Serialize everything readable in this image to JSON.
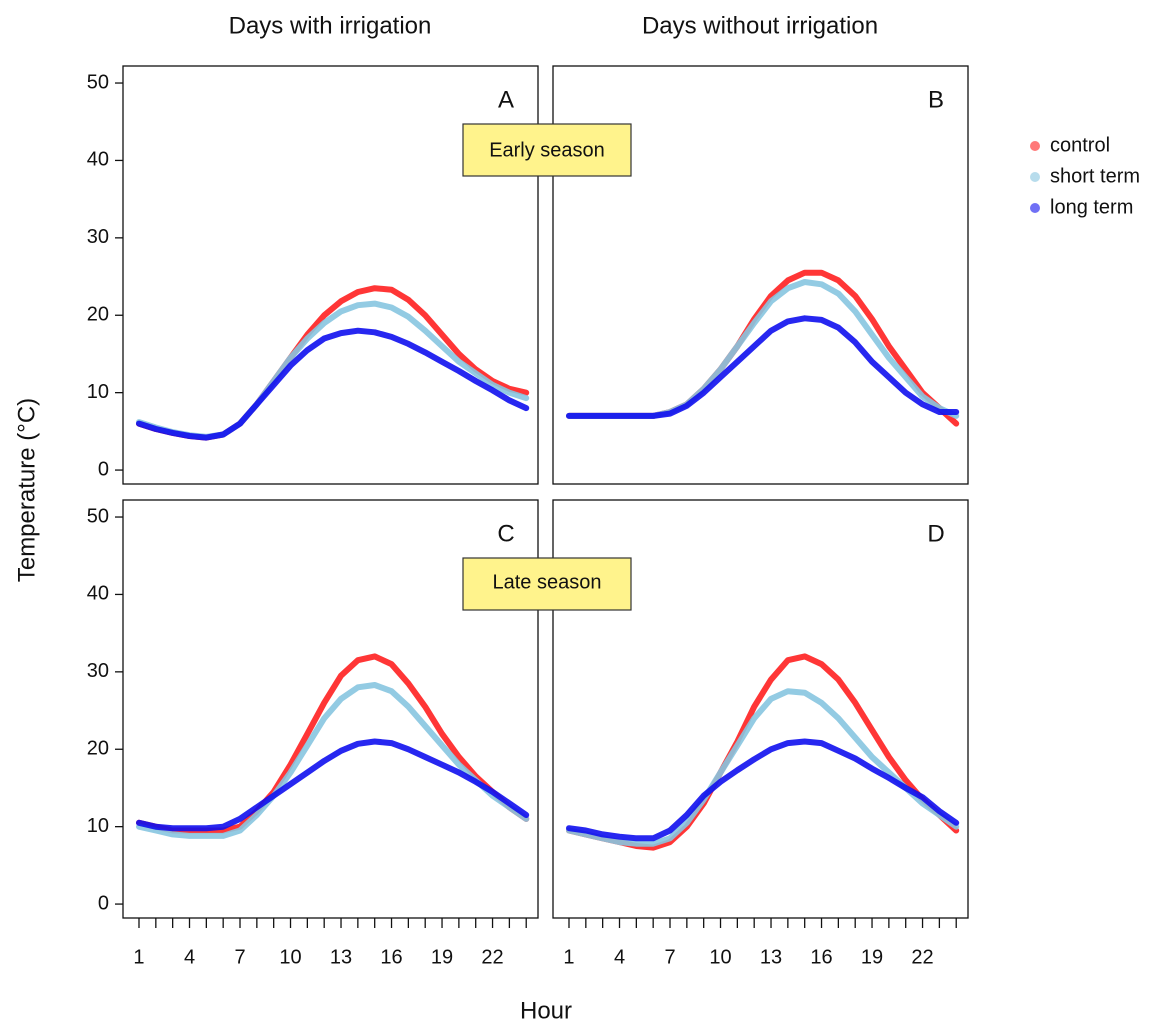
{
  "figure": {
    "column_titles": [
      "Days with irrigation",
      "Days without irrigation"
    ],
    "season_labels": [
      "Early season",
      "Late season"
    ],
    "y_label": "Temperature (°C)",
    "x_label": "Hour"
  },
  "chart_data": [
    {
      "type": "line",
      "title": "A",
      "xlim": [
        0.05,
        24.7
      ],
      "ylim": [
        -1.8,
        52.2
      ],
      "yticks": [
        0,
        10,
        20,
        30,
        40,
        50
      ],
      "x": [
        1,
        2,
        3,
        4,
        5,
        6,
        7,
        8,
        9,
        10,
        11,
        12,
        13,
        14,
        15,
        16,
        17,
        18,
        19,
        20,
        21,
        22,
        23,
        24
      ],
      "series": [
        {
          "name": "control",
          "color": "#ff2020",
          "values": [
            6,
            5.3,
            4.8,
            4.4,
            4.2,
            4.6,
            6,
            8.5,
            11.5,
            14.5,
            17.5,
            20,
            21.8,
            23,
            23.5,
            23.3,
            22,
            20,
            17.5,
            15,
            13,
            11.5,
            10.5,
            10
          ]
        },
        {
          "name": "short term",
          "color": "#87c5e0",
          "values": [
            6.2,
            5.5,
            4.9,
            4.5,
            4.3,
            4.6,
            6,
            8.5,
            11.5,
            14.5,
            17,
            19,
            20.5,
            21.3,
            21.5,
            21,
            19.8,
            18,
            16,
            14,
            12.5,
            11,
            10,
            9.3
          ]
        },
        {
          "name": "long term",
          "color": "#1010ee",
          "values": [
            6,
            5.3,
            4.8,
            4.4,
            4.2,
            4.6,
            6,
            8.5,
            11,
            13.5,
            15.5,
            17,
            17.7,
            18,
            17.8,
            17.2,
            16.3,
            15.2,
            14,
            12.8,
            11.5,
            10.3,
            9,
            8
          ]
        }
      ]
    },
    {
      "type": "line",
      "title": "B",
      "xlim": [
        0.05,
        24.7
      ],
      "ylim": [
        -1.8,
        52.2
      ],
      "x": [
        1,
        2,
        3,
        4,
        5,
        6,
        7,
        8,
        9,
        10,
        11,
        12,
        13,
        14,
        15,
        16,
        17,
        18,
        19,
        20,
        21,
        22,
        23,
        24
      ],
      "series": [
        {
          "name": "control",
          "color": "#ff2020",
          "values": [
            7,
            7,
            7,
            7,
            7,
            7,
            7.5,
            8.5,
            10.5,
            13,
            16,
            19.5,
            22.5,
            24.5,
            25.5,
            25.5,
            24.5,
            22.5,
            19.5,
            16,
            13,
            10,
            8,
            6
          ]
        },
        {
          "name": "short term",
          "color": "#87c5e0",
          "values": [
            7,
            7,
            7,
            7,
            7,
            7,
            7.5,
            8.5,
            10.5,
            13,
            16,
            19,
            21.8,
            23.5,
            24.3,
            24,
            22.8,
            20.5,
            17.5,
            14.5,
            12,
            9.5,
            8,
            7
          ]
        },
        {
          "name": "long term",
          "color": "#1010ee",
          "values": [
            7,
            7,
            7,
            7,
            7,
            7,
            7.3,
            8.3,
            10,
            12,
            14,
            16,
            18,
            19.2,
            19.6,
            19.4,
            18.4,
            16.5,
            14,
            12,
            10,
            8.5,
            7.5,
            7.5
          ]
        }
      ]
    },
    {
      "type": "line",
      "title": "C",
      "xlim": [
        0.05,
        24.7
      ],
      "ylim": [
        -1.8,
        52.2
      ],
      "yticks": [
        0,
        10,
        20,
        30,
        40,
        50
      ],
      "xticks": [
        1,
        4,
        7,
        10,
        13,
        16,
        19,
        22
      ],
      "xticks_minor": [
        2,
        3,
        5,
        6,
        8,
        9,
        11,
        12,
        14,
        15,
        17,
        18,
        20,
        21,
        23,
        24
      ],
      "x": [
        1,
        2,
        3,
        4,
        5,
        6,
        7,
        8,
        9,
        10,
        11,
        12,
        13,
        14,
        15,
        16,
        17,
        18,
        19,
        20,
        21,
        22,
        23,
        24
      ],
      "series": [
        {
          "name": "control",
          "color": "#ff2020",
          "values": [
            10.5,
            10,
            9.5,
            9.5,
            9.5,
            9.5,
            10,
            12,
            14.5,
            18,
            22,
            26,
            29.5,
            31.5,
            32,
            31,
            28.5,
            25.5,
            22,
            19,
            16.5,
            14.5,
            12.5,
            11
          ]
        },
        {
          "name": "short term",
          "color": "#87c5e0",
          "values": [
            10,
            9.5,
            9,
            8.8,
            8.8,
            8.8,
            9.5,
            11.5,
            14,
            17,
            20.5,
            24,
            26.5,
            28,
            28.3,
            27.5,
            25.5,
            23,
            20.5,
            18,
            16,
            14,
            12.5,
            11
          ]
        },
        {
          "name": "long term",
          "color": "#1010ee",
          "values": [
            10.5,
            10,
            9.8,
            9.8,
            9.8,
            10,
            11,
            12.5,
            14,
            15.5,
            17,
            18.5,
            19.8,
            20.7,
            21,
            20.8,
            20,
            19,
            18,
            17,
            15.8,
            14.5,
            13,
            11.5
          ]
        }
      ]
    },
    {
      "type": "line",
      "title": "D",
      "xlim": [
        0.05,
        24.7
      ],
      "ylim": [
        -1.8,
        52.2
      ],
      "xticks": [
        1,
        4,
        7,
        10,
        13,
        16,
        19,
        22
      ],
      "xticks_minor": [
        2,
        3,
        5,
        6,
        8,
        9,
        11,
        12,
        14,
        15,
        17,
        18,
        20,
        21,
        23,
        24
      ],
      "x": [
        1,
        2,
        3,
        4,
        5,
        6,
        7,
        8,
        9,
        10,
        11,
        12,
        13,
        14,
        15,
        16,
        17,
        18,
        19,
        20,
        21,
        22,
        23,
        24
      ],
      "series": [
        {
          "name": "control",
          "color": "#ff2020",
          "values": [
            9.5,
            9,
            8.5,
            8,
            7.5,
            7.3,
            8,
            10,
            13,
            17,
            21,
            25.5,
            29,
            31.5,
            32,
            31,
            29,
            26,
            22.5,
            19,
            16,
            13.5,
            11.5,
            9.5
          ]
        },
        {
          "name": "short term",
          "color": "#87c5e0",
          "values": [
            9.5,
            9,
            8.5,
            8,
            7.8,
            7.8,
            8.5,
            10.5,
            13.5,
            17,
            20.5,
            24,
            26.5,
            27.5,
            27.3,
            26,
            24,
            21.5,
            19,
            17,
            15,
            13,
            11.5,
            10
          ]
        },
        {
          "name": "long term",
          "color": "#1010ee",
          "values": [
            9.8,
            9.5,
            9,
            8.7,
            8.5,
            8.5,
            9.5,
            11.5,
            14,
            15.8,
            17.3,
            18.7,
            20,
            20.8,
            21,
            20.8,
            19.8,
            18.8,
            17.5,
            16.3,
            15,
            13.8,
            12,
            10.5
          ]
        }
      ]
    }
  ]
}
